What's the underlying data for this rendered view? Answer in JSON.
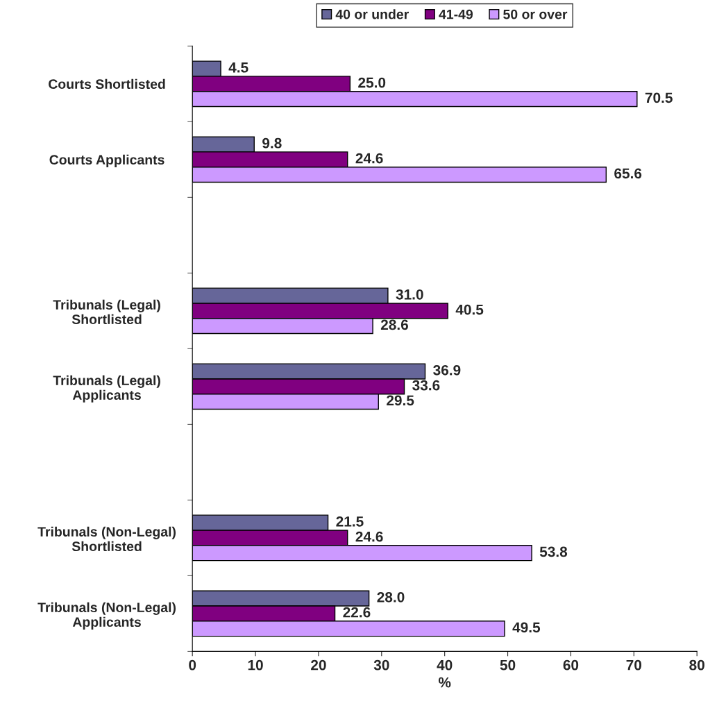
{
  "chart_data": {
    "type": "bar",
    "orientation": "horizontal",
    "categories": [
      "Courts Shortlisted",
      "Courts Applicants",
      null,
      "Tribunals (Legal)\nShortlisted",
      "Tribunals (Legal)\nApplicants",
      null,
      "Tribunals (Non-Legal)\nShortlisted",
      "Tribunals (Non-Legal)\nApplicants"
    ],
    "series": [
      {
        "name": "40 or under",
        "color": "#666699",
        "values": [
          4.5,
          9.8,
          null,
          31.0,
          36.9,
          null,
          21.5,
          28.0
        ],
        "value_labels": [
          "4.5",
          "9.8",
          null,
          "31.0",
          "36.9",
          null,
          "21.5",
          "28.0"
        ]
      },
      {
        "name": "41-49",
        "color": "#800080",
        "values": [
          25.0,
          24.6,
          null,
          40.5,
          33.6,
          null,
          24.6,
          22.6
        ],
        "value_labels": [
          "25.0",
          "24.6",
          null,
          "40.5",
          "33.6",
          null,
          "24.6",
          "22.6"
        ]
      },
      {
        "name": "50 or over",
        "color": "#cc99ff",
        "values": [
          70.5,
          65.6,
          null,
          28.6,
          29.5,
          null,
          53.8,
          49.5
        ],
        "value_labels": [
          "70.5",
          "65.6",
          null,
          "28.6",
          "29.5",
          null,
          "53.8",
          "49.5"
        ]
      }
    ],
    "xlabel": "%",
    "xlim": [
      0,
      80
    ],
    "xticks": [
      0,
      10,
      20,
      30,
      40,
      50,
      60,
      70,
      80
    ],
    "legend": "top",
    "grid": false
  }
}
